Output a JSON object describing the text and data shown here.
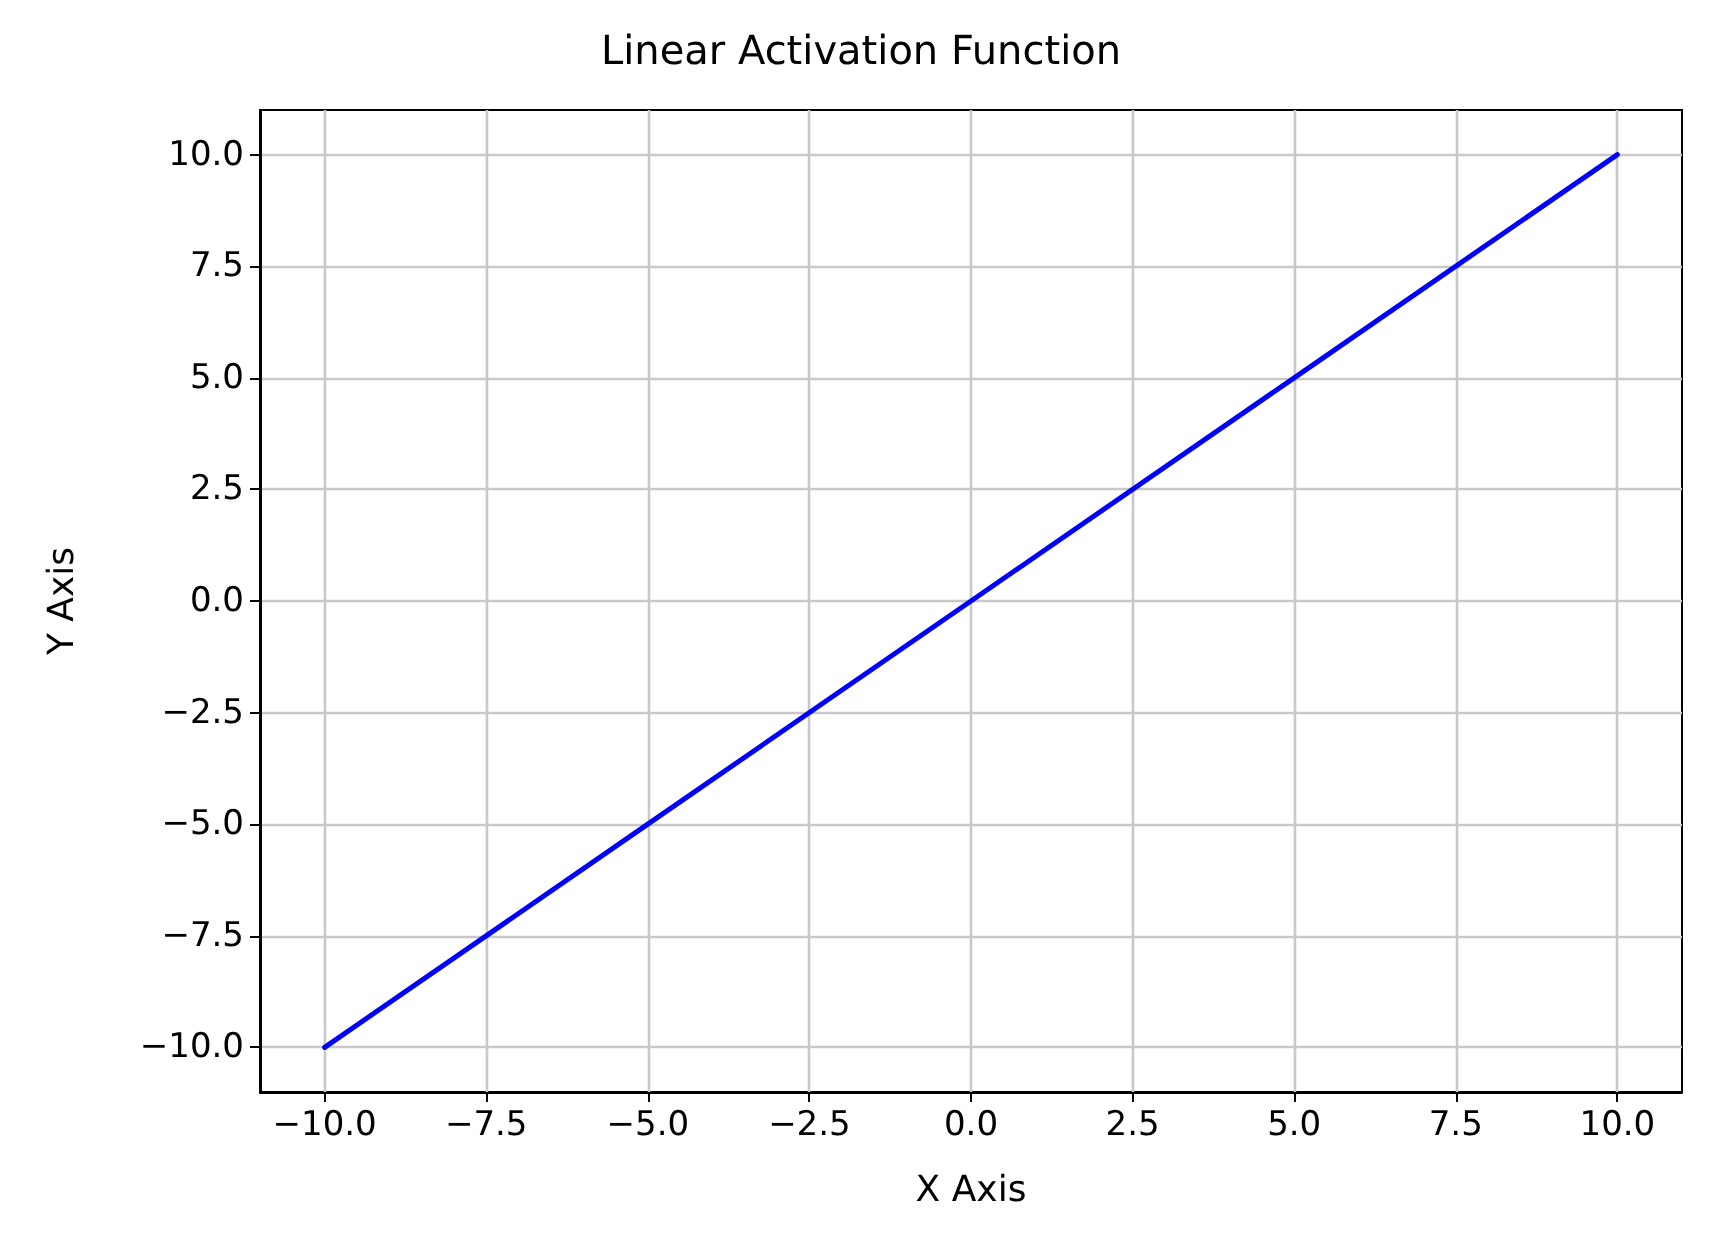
{
  "chart_data": {
    "type": "line",
    "title": "Linear Activation Function",
    "xlabel": "X Axis",
    "ylabel": "Y Axis",
    "x": [
      -10,
      -5,
      0,
      5,
      10
    ],
    "series": [
      {
        "color": "#0000ff",
        "values": [
          -10,
          -5,
          0,
          5,
          10
        ]
      }
    ],
    "xlim": [
      -11,
      11
    ],
    "ylim": [
      -11,
      11
    ],
    "xticks": [
      {
        "value": -10,
        "label": "−10.0"
      },
      {
        "value": -7.5,
        "label": "−7.5"
      },
      {
        "value": -5,
        "label": "−5.0"
      },
      {
        "value": -2.5,
        "label": "−2.5"
      },
      {
        "value": 0,
        "label": "0.0"
      },
      {
        "value": 2.5,
        "label": "2.5"
      },
      {
        "value": 5,
        "label": "5.0"
      },
      {
        "value": 7.5,
        "label": "7.5"
      },
      {
        "value": 10,
        "label": "10.0"
      }
    ],
    "yticks": [
      {
        "value": -10,
        "label": "−10.0"
      },
      {
        "value": -7.5,
        "label": "−7.5"
      },
      {
        "value": -5,
        "label": "−5.0"
      },
      {
        "value": -2.5,
        "label": "−2.5"
      },
      {
        "value": 0,
        "label": "0.0"
      },
      {
        "value": 2.5,
        "label": "2.5"
      },
      {
        "value": 5,
        "label": "5.0"
      },
      {
        "value": 7.5,
        "label": "7.5"
      },
      {
        "value": 10,
        "label": "10.0"
      }
    ],
    "grid": true,
    "marker": "none",
    "line_style": "solid"
  }
}
